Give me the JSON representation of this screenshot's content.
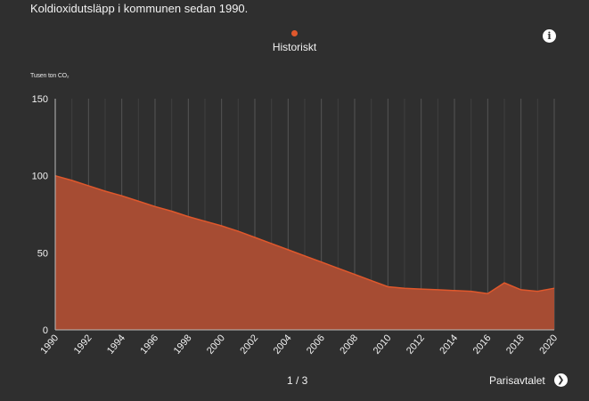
{
  "subtitle": "Koldioxidutsläpp i kommunen sedan 1990.",
  "legend": {
    "label": "Historiskt"
  },
  "info_icon": "info-icon",
  "unit_label": "Tusen ton CO₂",
  "pagination": {
    "text": "1 / 3"
  },
  "next": {
    "label": "Parisavtalet",
    "icon": "chevron-right-icon"
  },
  "colors": {
    "series": "#e0582c",
    "fill": "#a64c33",
    "background": "#2f2f2f",
    "grid": "#555555",
    "text": "#f2f2f2"
  },
  "chart_data": {
    "type": "area",
    "title": "",
    "xlabel": "",
    "ylabel": "Tusen ton CO₂",
    "xlim": [
      1990,
      2020
    ],
    "ylim": [
      0,
      150
    ],
    "yticks": [
      0,
      50,
      100,
      150
    ],
    "xticks": [
      1990,
      1992,
      1994,
      1996,
      1998,
      2000,
      2002,
      2004,
      2006,
      2008,
      2010,
      2012,
      2014,
      2016,
      2018,
      2020
    ],
    "grid": true,
    "legend": "top-center",
    "series": [
      {
        "name": "Historiskt",
        "x": [
          1990,
          1991,
          1992,
          1993,
          1994,
          1995,
          1996,
          1997,
          1998,
          1999,
          2000,
          2001,
          2002,
          2003,
          2004,
          2005,
          2006,
          2007,
          2008,
          2009,
          2010,
          2011,
          2012,
          2013,
          2014,
          2015,
          2016,
          2017,
          2018,
          2019,
          2020
        ],
        "y": [
          100,
          97,
          93.5,
          90,
          87,
          83.5,
          80,
          77,
          73.5,
          70.5,
          67.5,
          64,
          60,
          56,
          52,
          48,
          44,
          40,
          36,
          32,
          28,
          27,
          26.5,
          26,
          25.5,
          25,
          23.5,
          30.5,
          26,
          25,
          27
        ]
      }
    ]
  }
}
